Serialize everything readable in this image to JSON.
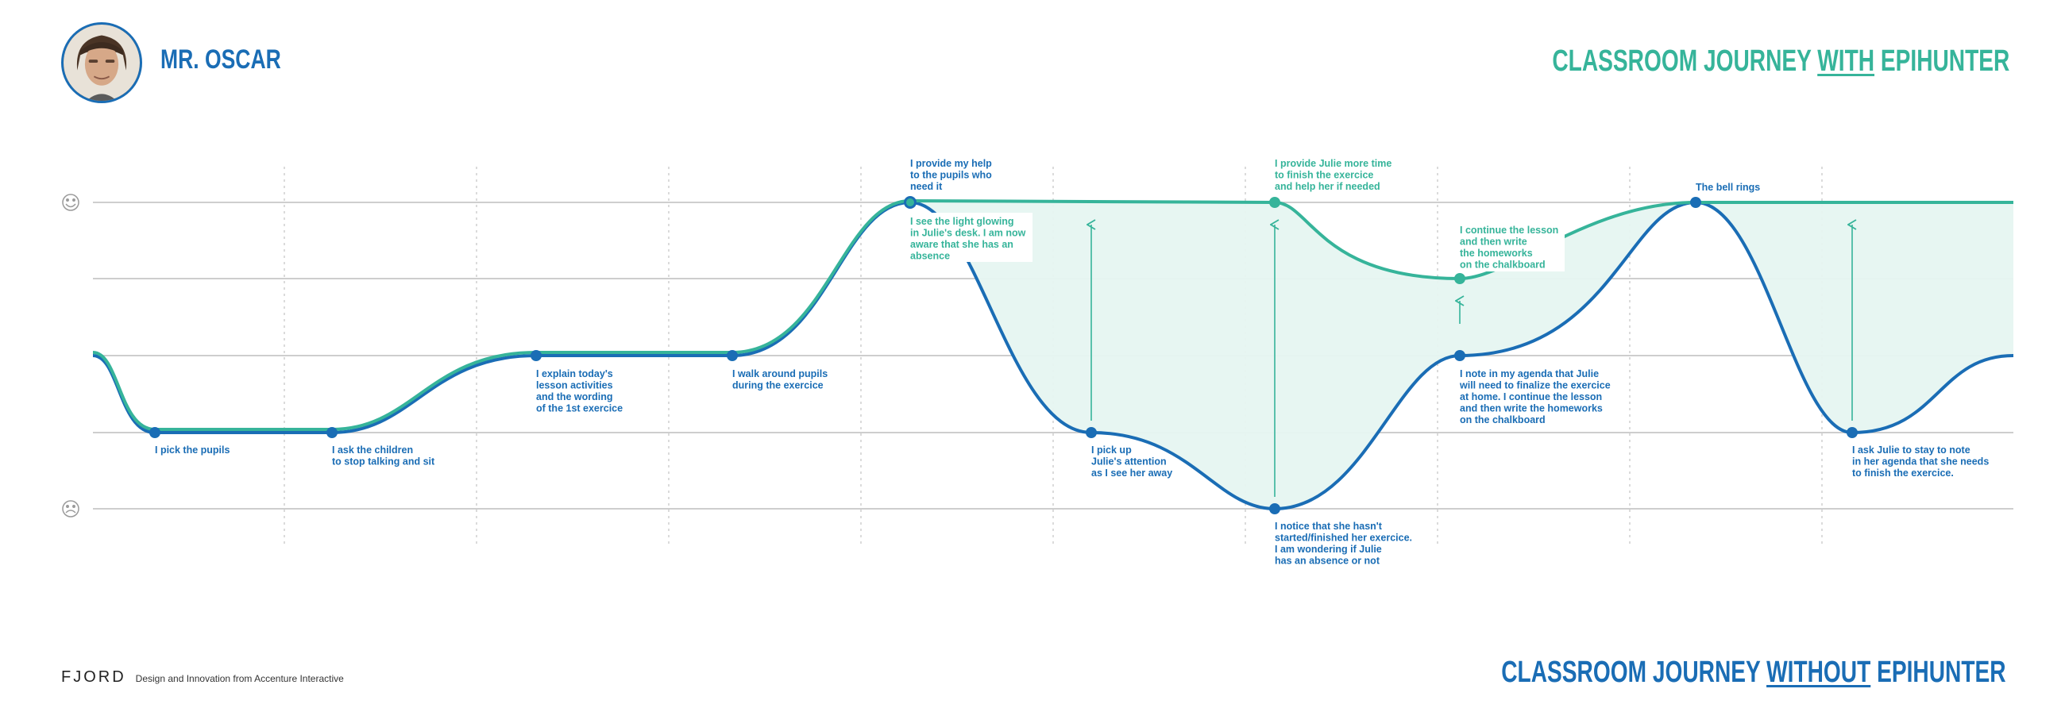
{
  "persona": {
    "name": "MR. OSCAR"
  },
  "titles": {
    "with_prefix": "CLASSROOM JOURNEY ",
    "with_emph": "WITH",
    "with_suffix": " EPIHUNTER",
    "without_prefix": "CLASSROOM JOURNEY ",
    "without_emph": "WITHOUT",
    "without_suffix": " EPIHUNTER"
  },
  "footer": {
    "brand": "FJORD",
    "tagline": "Design and Innovation from Accenture Interactive"
  },
  "colors": {
    "without_line": "#1a6db5",
    "with_line": "#36b49a",
    "fill": "#e6f6f1",
    "grid": "#bdbdbd"
  },
  "scale": {
    "happy_icon": "happy-face-icon",
    "sad_icon": "sad-face-icon"
  },
  "journey_without": [
    {
      "id": "w1",
      "text": [
        "I pick the pupils"
      ]
    },
    {
      "id": "w2",
      "text": [
        "I ask the children",
        "to stop talking and sit"
      ]
    },
    {
      "id": "w3",
      "text": [
        "I explain today's",
        "lesson activities",
        "and the wording",
        "of the 1st exercice"
      ]
    },
    {
      "id": "w4",
      "text": [
        "I walk around pupils",
        "during the exercice"
      ]
    },
    {
      "id": "w5",
      "text": [
        "I provide my help",
        "to the pupils who",
        "need it"
      ]
    },
    {
      "id": "w6",
      "text": [
        "I pick up",
        "Julie's attention",
        "as I see her away"
      ]
    },
    {
      "id": "w7",
      "text": [
        "I notice that she hasn't",
        "started/finished her exercice.",
        "I am wondering if Julie",
        "has an absence or not"
      ]
    },
    {
      "id": "w8",
      "text": [
        "I note in my agenda that Julie",
        "will need to finalize the exercice",
        "at home. I continue the lesson",
        "and then write the homeworks",
        "on the chalkboard"
      ]
    },
    {
      "id": "w9",
      "text": [
        "The bell rings"
      ]
    },
    {
      "id": "w10",
      "text": [
        "I ask Julie to stay to note",
        "in her agenda that she needs",
        "to finish the exercice."
      ]
    }
  ],
  "journey_with": [
    {
      "id": "g1",
      "text": [
        "I see the light glowing",
        "in Julie's desk. I am now",
        "aware that she has an",
        "absence"
      ]
    },
    {
      "id": "g2",
      "text": [
        "I provide Julie more time",
        "to finish the exercice",
        "and help her if needed"
      ]
    },
    {
      "id": "g3",
      "text": [
        "I continue the lesson",
        "and then write",
        "the homeworks",
        "on the chalkboard"
      ]
    }
  ]
}
